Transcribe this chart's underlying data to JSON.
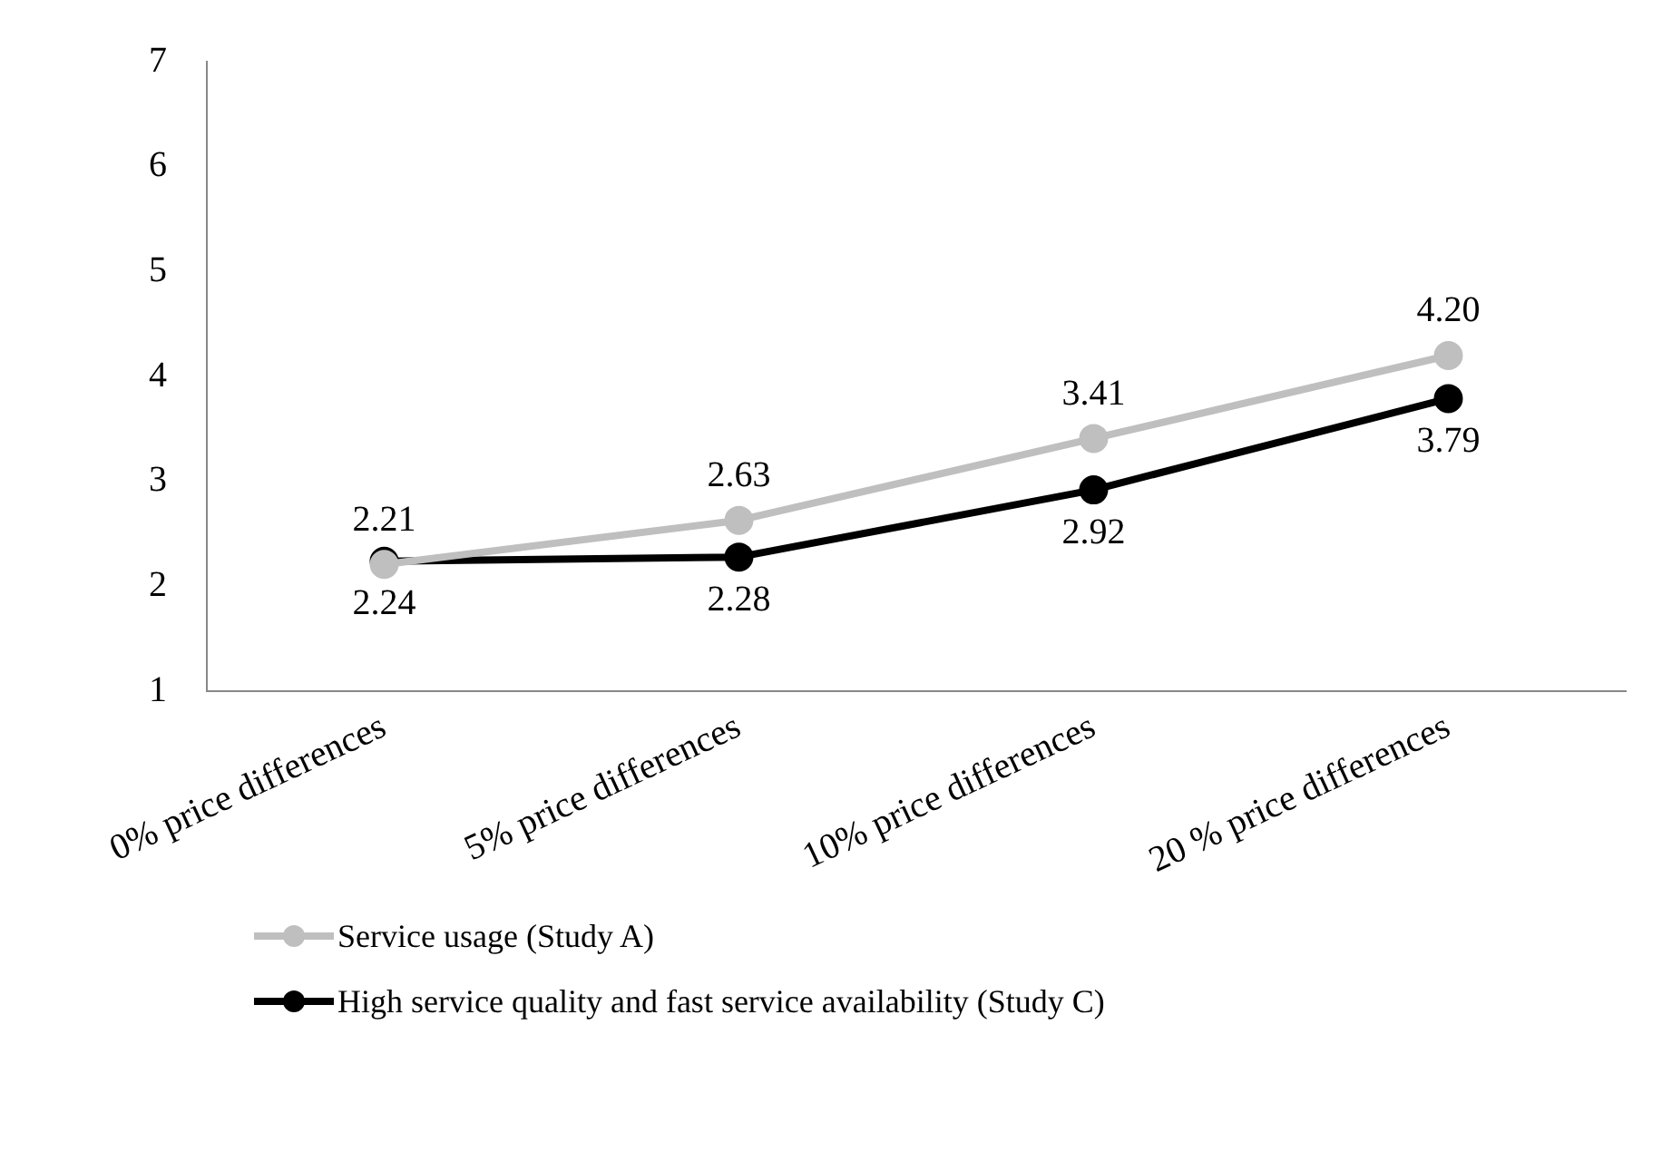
{
  "chart_data": {
    "type": "line",
    "categories": [
      "0% price differences",
      "5% price differences",
      "10% price differences",
      "20 % price differences"
    ],
    "series": [
      {
        "name": "Service usage (Study A)",
        "color": "#bfbfbf",
        "values": [
          2.21,
          2.63,
          3.41,
          4.2
        ],
        "value_labels": [
          "2.21",
          "2.63",
          "3.41",
          "4.20"
        ]
      },
      {
        "name": "High service quality and fast service availability (Study C)",
        "color": "#000000",
        "values": [
          2.24,
          2.28,
          2.92,
          3.79
        ],
        "value_labels": [
          "2.24",
          "2.28",
          "2.92",
          "3.79"
        ]
      }
    ],
    "ylim": [
      1,
      7
    ],
    "yticks": [
      1,
      2,
      3,
      4,
      5,
      6,
      7
    ],
    "grid": false,
    "legend": "bottom",
    "marker": "circle",
    "line_style": "solid"
  }
}
